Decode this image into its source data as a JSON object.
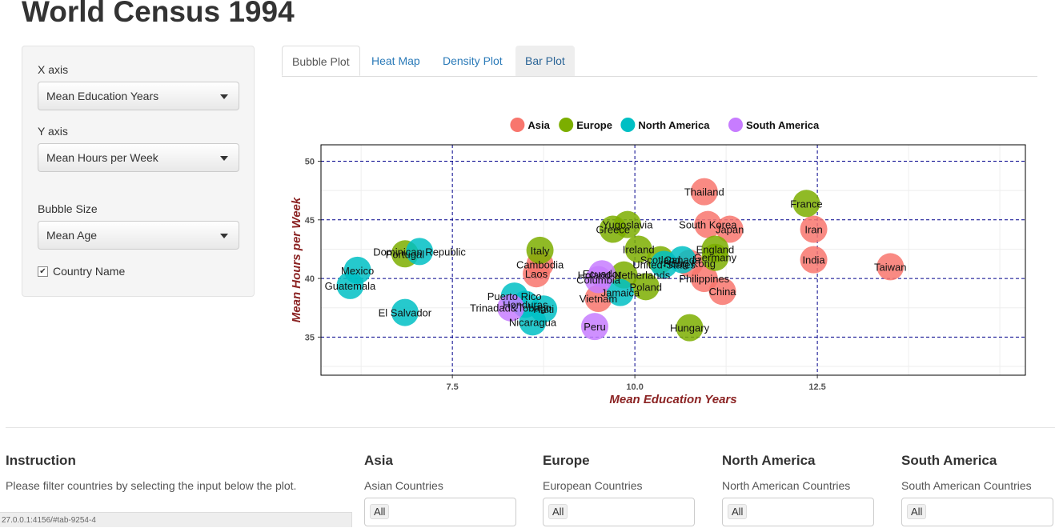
{
  "page": {
    "title": "World Census 1994"
  },
  "sidebar": {
    "x_label": "X axis",
    "x_value": "Mean Education Years",
    "y_label": "Y axis",
    "y_value": "Mean Hours per Week",
    "size_label": "Bubble Size",
    "size_value": "Mean Age",
    "checkbox_label": "Country Name",
    "checkbox_checked": true
  },
  "tabs": [
    "Bubble Plot",
    "Heat Map",
    "Density Plot",
    "Bar Plot"
  ],
  "chart_data": {
    "type": "scatter",
    "xlabel": "Mean Education Years",
    "ylabel": "Mean Hours per Week",
    "xlim": [
      5.7,
      15.35
    ],
    "ylim": [
      31.75,
      51.4
    ],
    "x_ticks": [
      "7.5",
      "10.0",
      "12.5"
    ],
    "y_ticks": [
      "35",
      "40",
      "45",
      "50"
    ],
    "grid": true,
    "legend_position": "top",
    "legend": [
      "Asia",
      "Europe",
      "North America",
      "South America"
    ],
    "colors": {
      "Asia": "#f8766d",
      "Europe": "#7cae00",
      "North America": "#00bfc4",
      "South America": "#c77cff"
    },
    "points": [
      {
        "label": "Thailand",
        "region": "Asia",
        "x": 10.95,
        "y": 47.4
      },
      {
        "label": "South Korea",
        "region": "Asia",
        "x": 11.0,
        "y": 44.6
      },
      {
        "label": "Japan",
        "region": "Asia",
        "x": 11.3,
        "y": 44.2
      },
      {
        "label": "Iran",
        "region": "Asia",
        "x": 12.45,
        "y": 44.2
      },
      {
        "label": "India",
        "region": "Asia",
        "x": 12.45,
        "y": 41.6
      },
      {
        "label": "Taiwan",
        "region": "Asia",
        "x": 13.5,
        "y": 41.0
      },
      {
        "label": "Cambodia",
        "region": "Asia",
        "x": 8.7,
        "y": 41.2
      },
      {
        "label": "Laos",
        "region": "Asia",
        "x": 8.65,
        "y": 40.4
      },
      {
        "label": "Vietnam",
        "region": "Asia",
        "x": 9.5,
        "y": 38.3
      },
      {
        "label": "Philippines",
        "region": "Asia",
        "x": 10.95,
        "y": 40.0
      },
      {
        "label": "China",
        "region": "Asia",
        "x": 11.2,
        "y": 38.9
      },
      {
        "label": "Hong Kong",
        "region": "Asia",
        "x": 10.75,
        "y": 41.3
      },
      {
        "label": "France",
        "region": "Europe",
        "x": 12.35,
        "y": 46.4
      },
      {
        "label": "Yugoslavia",
        "region": "Europe",
        "x": 9.9,
        "y": 44.6
      },
      {
        "label": "Greece",
        "region": "Europe",
        "x": 9.7,
        "y": 44.2
      },
      {
        "label": "England",
        "region": "Europe",
        "x": 11.1,
        "y": 42.5
      },
      {
        "label": "Germany",
        "region": "Europe",
        "x": 11.1,
        "y": 41.8
      },
      {
        "label": "Ireland",
        "region": "Europe",
        "x": 10.05,
        "y": 42.5
      },
      {
        "label": "Scotland",
        "region": "Europe",
        "x": 10.35,
        "y": 41.6
      },
      {
        "label": "Italy",
        "region": "Europe",
        "x": 8.7,
        "y": 42.4
      },
      {
        "label": "Portugal",
        "region": "Europe",
        "x": 6.85,
        "y": 42.1
      },
      {
        "label": "Holand-Netherlands",
        "region": "Europe",
        "x": 9.85,
        "y": 40.3
      },
      {
        "label": "Poland",
        "region": "Europe",
        "x": 10.15,
        "y": 39.3
      },
      {
        "label": "Hungary",
        "region": "Europe",
        "x": 10.75,
        "y": 35.8
      },
      {
        "label": "Dominican Republic",
        "region": "North America",
        "x": 7.05,
        "y": 42.3
      },
      {
        "label": "Mexico",
        "region": "North America",
        "x": 6.2,
        "y": 40.7
      },
      {
        "label": "Guatemala",
        "region": "North America",
        "x": 6.1,
        "y": 39.4
      },
      {
        "label": "El Salvador",
        "region": "North America",
        "x": 6.85,
        "y": 37.1
      },
      {
        "label": "Puerto Rico",
        "region": "North America",
        "x": 8.35,
        "y": 38.5
      },
      {
        "label": "Honduras",
        "region": "North America",
        "x": 8.5,
        "y": 37.8
      },
      {
        "label": "Haiti",
        "region": "North America",
        "x": 8.75,
        "y": 37.4
      },
      {
        "label": "Nicaragua",
        "region": "North America",
        "x": 8.6,
        "y": 36.3
      },
      {
        "label": "Jamaica",
        "region": "North America",
        "x": 9.8,
        "y": 38.8
      },
      {
        "label": "United-States",
        "region": "North America",
        "x": 10.4,
        "y": 41.2
      },
      {
        "label": "Canada",
        "region": "North America",
        "x": 10.65,
        "y": 41.6
      },
      {
        "label": "Trinadad&Tobago",
        "region": "South America",
        "x": 8.3,
        "y": 37.5
      },
      {
        "label": "Ecuador",
        "region": "South America",
        "x": 9.55,
        "y": 40.4
      },
      {
        "label": "Columbia",
        "region": "South America",
        "x": 9.5,
        "y": 39.9
      },
      {
        "label": "Peru",
        "region": "South America",
        "x": 9.45,
        "y": 35.9
      }
    ]
  },
  "bottom": {
    "instruction_title": "Instruction",
    "instruction_text": "Please filter countries by selecting the input below the plot.",
    "asia_title": "Asia",
    "asia_label": "Asian Countries",
    "asia_value": "All",
    "europe_title": "Europe",
    "europe_label": "European Countries",
    "europe_value": "All",
    "na_title": "North America",
    "na_label": "North American Countries",
    "na_value": "All",
    "sa_title": "South America",
    "sa_label": "South American Countries",
    "sa_value": "All"
  },
  "status_bar": {
    "url": "27.0.0.1:4156/#tab-9254-4"
  }
}
